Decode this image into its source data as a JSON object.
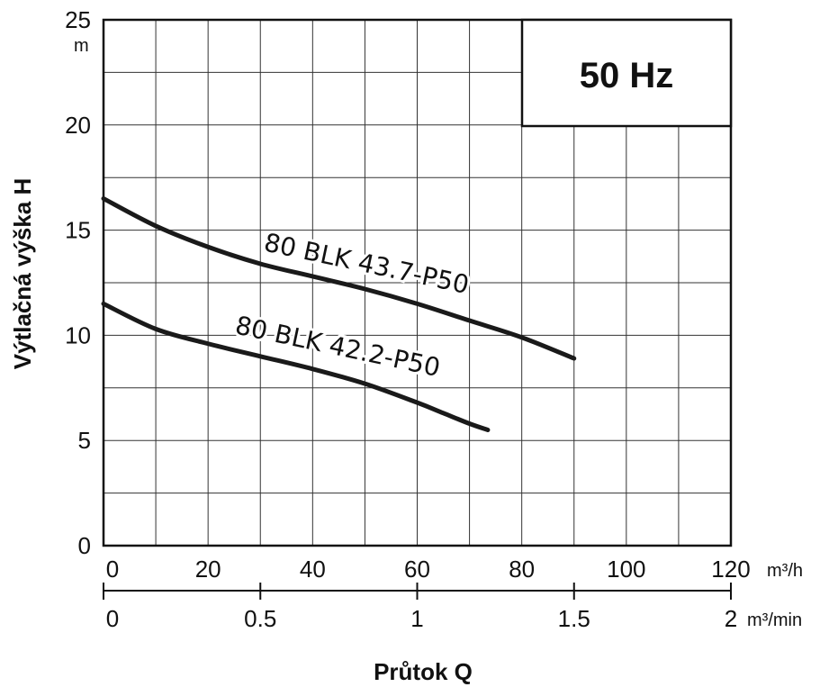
{
  "chart_data": {
    "type": "line",
    "title": "50 Hz",
    "ylabel": "Výtlačná výška H",
    "yunit": "m",
    "xlabel": "Průtok Q",
    "xunit_primary": "m³/h",
    "xunit_secondary": "m³/min",
    "ylim": [
      0,
      25
    ],
    "xlim": [
      0,
      120
    ],
    "grid": true,
    "y_ticks": [
      "0",
      "5",
      "10",
      "15",
      "20",
      "25"
    ],
    "x_ticks_primary": [
      "0",
      "20",
      "40",
      "60",
      "80",
      "100",
      "120"
    ],
    "x_ticks_secondary": [
      "0",
      "0.5",
      "1",
      "1.5",
      "2"
    ],
    "series": [
      {
        "name": "80 BLK 43.7-P50",
        "x": [
          0,
          10,
          20,
          30,
          40,
          50,
          60,
          70,
          80,
          90
        ],
        "y": [
          16.5,
          15.2,
          14.2,
          13.4,
          12.8,
          12.2,
          11.5,
          10.7,
          9.9,
          8.9
        ]
      },
      {
        "name": "80 BLK 42.2-P50",
        "x": [
          0,
          10,
          20,
          30,
          40,
          50,
          60,
          65,
          70,
          73.5
        ],
        "y": [
          11.5,
          10.3,
          9.6,
          9.0,
          8.4,
          7.7,
          6.8,
          6.3,
          5.8,
          5.5
        ]
      }
    ]
  }
}
